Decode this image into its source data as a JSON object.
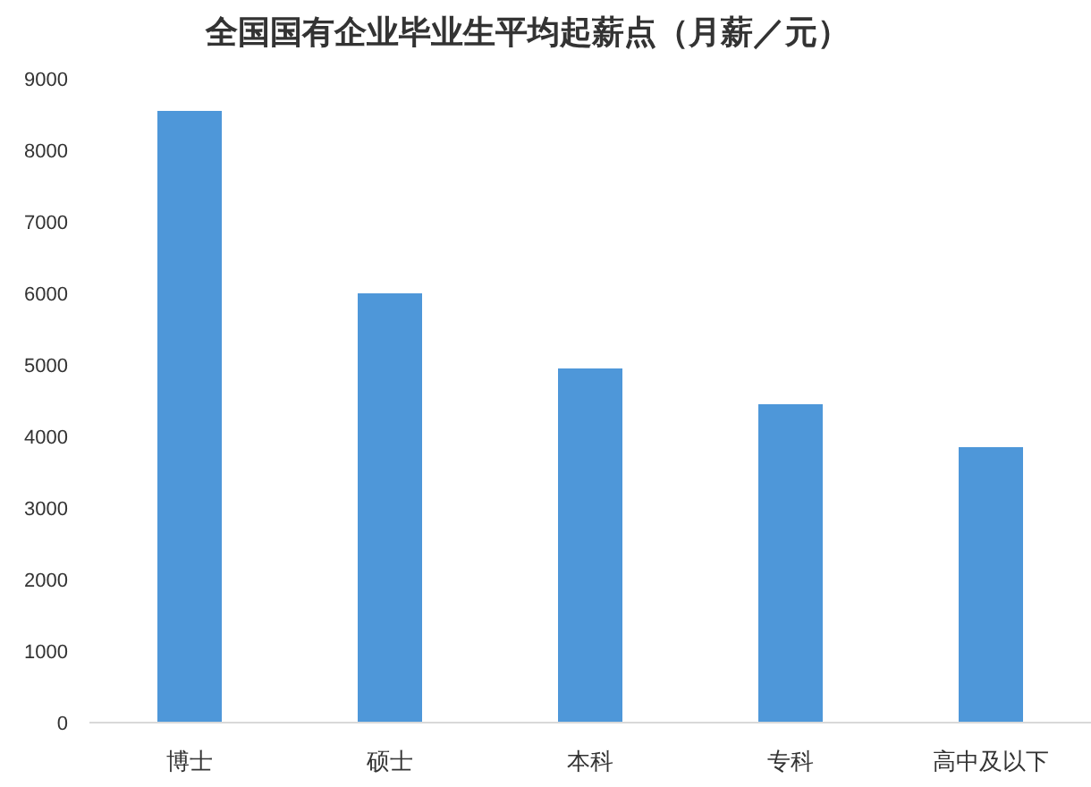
{
  "chart_data": {
    "type": "bar",
    "title": "全国国有企业毕业生平均起薪点（月薪／元）",
    "categories": [
      "博士",
      "硕士",
      "本科",
      "专科",
      "高中及以下"
    ],
    "values": [
      8550,
      6000,
      4950,
      4450,
      3850
    ],
    "color": "#4e97d9",
    "ylim": [
      0,
      9000
    ],
    "yticks": [
      0,
      1000,
      2000,
      3000,
      4000,
      5000,
      6000,
      7000,
      8000,
      9000
    ]
  }
}
